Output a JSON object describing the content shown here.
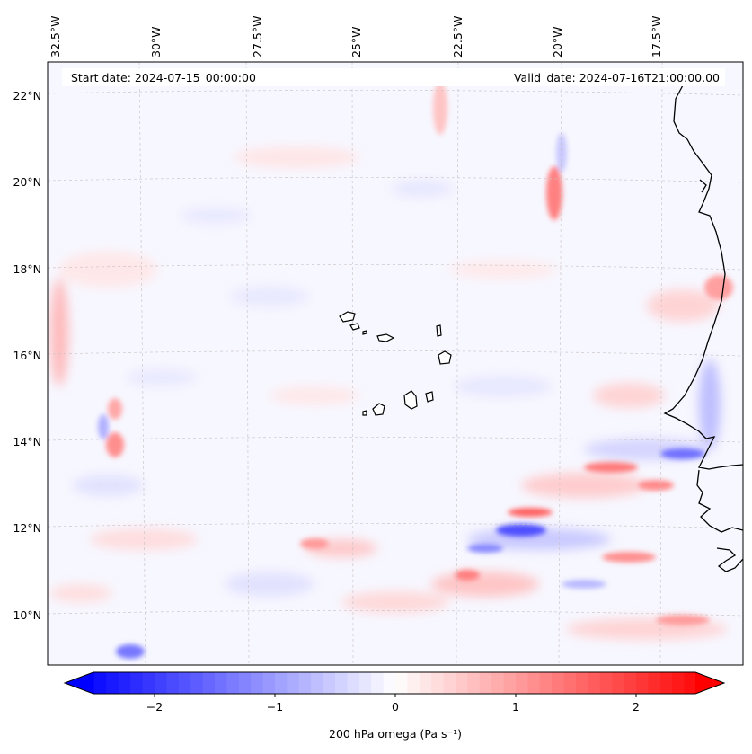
{
  "header": {
    "start_date": "Start date: 2024-07-15_00:00:00",
    "valid_date": "Valid_date: 2024-07-16T21:00:00.00"
  },
  "map": {
    "lon_labels": [
      "32.5°W",
      "30°W",
      "27.5°W",
      "25°W",
      "22.5°W",
      "20°W",
      "17.5°W"
    ],
    "lat_labels": [
      "22°N",
      "20°N",
      "18°N",
      "16°N",
      "14°N",
      "12°N",
      "10°N"
    ],
    "features": [
      "coastline",
      "cape-verde-islands",
      "dashed-graticule"
    ]
  },
  "colorbar": {
    "label": "200 hPa omega (Pa s⁻¹)",
    "ticks": [
      "−2",
      "−1",
      "0",
      "1",
      "2"
    ],
    "range": [
      -2.6,
      2.6
    ],
    "cmap": "bwr",
    "low_color": "#0000ff",
    "mid_color": "#ffffff",
    "high_color": "#ff0000"
  }
}
